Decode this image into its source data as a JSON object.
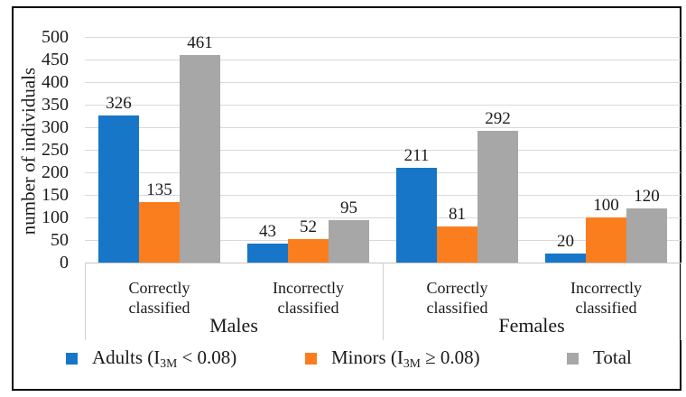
{
  "chart_data": {
    "type": "bar",
    "title": "",
    "xlabel": "",
    "ylabel": "number of individuals",
    "ylim": [
      0,
      500
    ],
    "yticks": [
      0,
      50,
      100,
      150,
      200,
      250,
      300,
      350,
      400,
      450,
      500
    ],
    "grid": true,
    "legend_position": "bottom",
    "category_labels": [
      "Correctly\nclassified",
      "Incorrectly\nclassified",
      "Correctly\nclassified",
      "Incorrectly\nclassified"
    ],
    "groups": [
      {
        "label": "Males",
        "from": 0,
        "to": 2
      },
      {
        "label": "Females",
        "from": 2,
        "to": 4
      }
    ],
    "series": [
      {
        "name": "Adults (I3M < 0.08)",
        "color": "#1776C8",
        "values": [
          326,
          43,
          211,
          20
        ],
        "legend": {
          "pre": "Adults (I",
          "sub": "3M",
          "post": " < 0.08)"
        }
      },
      {
        "name": "Minors (I3M ≥ 0.08)",
        "color": "#FA7E1E",
        "values": [
          135,
          52,
          81,
          100
        ],
        "legend": {
          "pre": "Minors (I",
          "sub": "3M",
          "post": " ≥ 0.08)"
        }
      },
      {
        "name": "Total",
        "color": "#A7A7A7",
        "values": [
          461,
          95,
          292,
          120
        ],
        "legend": {
          "pre": "Total",
          "sub": "",
          "post": ""
        }
      }
    ]
  },
  "colors": {
    "gridline": "#D9D9D9",
    "axis": "#C4C4C4",
    "separator": "#D0D0D0",
    "frame": "#000000",
    "text": "#1A1A1A"
  }
}
